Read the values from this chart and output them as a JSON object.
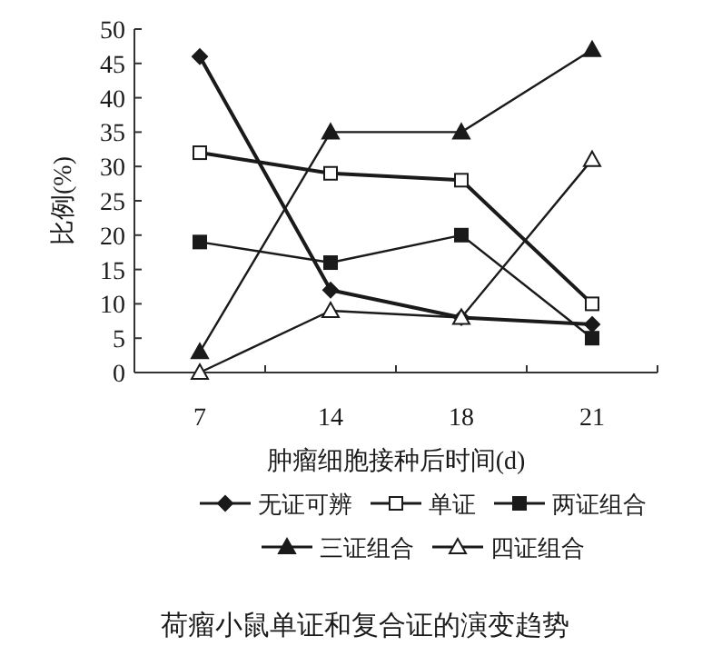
{
  "chart_data": {
    "type": "line",
    "title": "荷瘤小鼠单证和复合证的演变趋势",
    "xlabel": "肿瘤细胞接种后时间(d)",
    "ylabel": "比例(%)",
    "categories": [
      "7",
      "14",
      "18",
      "21"
    ],
    "series": [
      {
        "name": "无证可辨",
        "color": "#1a1a1a",
        "marker": "diamond",
        "values": [
          46,
          12,
          8,
          7
        ]
      },
      {
        "name": "单证",
        "color": "#1a1a1a",
        "marker": "square",
        "values": [
          32,
          29,
          28,
          10
        ]
      },
      {
        "name": "两证组合",
        "color": "#1a1a1a",
        "marker": "square",
        "values": [
          19,
          16,
          20,
          5
        ]
      },
      {
        "name": "三证组合",
        "color": "#1a1a1a",
        "marker": "triangle",
        "values": [
          3,
          35,
          35,
          47
        ]
      },
      {
        "name": "四证组合",
        "color": "#1a1a1a",
        "marker": "triangle",
        "values": [
          0,
          9,
          8,
          31
        ]
      }
    ],
    "ylim": [
      0,
      50
    ],
    "yticks": [
      0,
      5,
      10,
      15,
      20,
      25,
      30,
      35,
      40,
      45,
      50
    ],
    "grid": false,
    "legend": "bottom",
    "line_style": "solid"
  }
}
